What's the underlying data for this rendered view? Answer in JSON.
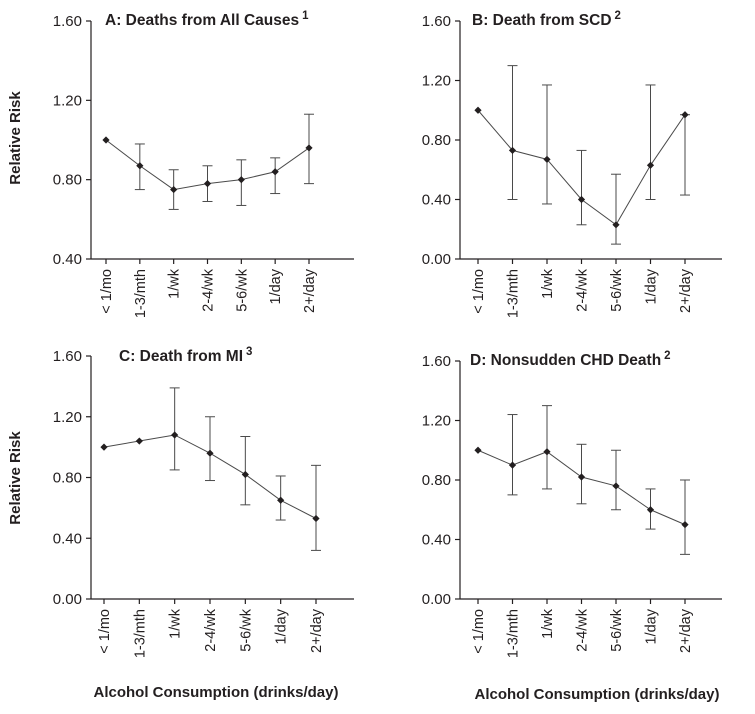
{
  "figure": {
    "x_axis_title": "Alcohol Consumption (drinks/day)",
    "y_axis_title": "Relative Risk"
  },
  "chart_data": [
    {
      "type": "line",
      "title": "A: Deaths from All Causes",
      "title_superscript": "1",
      "categories": [
        "< 1/mo",
        "1-3/mth",
        "1/wk",
        "2-4/wk",
        "5-6/wk",
        "1/day",
        "2+/day"
      ],
      "series": [
        {
          "name": "Relative Risk",
          "values": [
            1.0,
            0.87,
            0.75,
            0.78,
            0.8,
            0.84,
            0.96
          ],
          "lower": [
            1.0,
            0.75,
            0.65,
            0.69,
            0.67,
            0.73,
            0.78
          ],
          "upper": [
            1.0,
            0.98,
            0.85,
            0.87,
            0.9,
            0.91,
            1.13
          ]
        }
      ],
      "ylim": [
        0.4,
        1.6
      ],
      "yticks": [
        "0.40",
        "0.80",
        "1.20",
        "1.60"
      ],
      "ylabel": "Relative Risk",
      "xlabel": ""
    },
    {
      "type": "line",
      "title": "B: Death from SCD",
      "title_superscript": "2",
      "categories": [
        "< 1/mo",
        "1-3/mth",
        "1/wk",
        "2-4/wk",
        "5-6/wk",
        "1/day",
        "2+/day"
      ],
      "series": [
        {
          "name": "Relative Risk",
          "values": [
            1.0,
            0.73,
            0.67,
            0.4,
            0.23,
            0.63,
            0.97
          ],
          "lower": [
            1.0,
            0.4,
            0.37,
            0.23,
            0.1,
            0.4,
            0.43
          ],
          "upper": [
            1.0,
            1.3,
            1.17,
            0.73,
            0.57,
            1.17,
            0.97
          ]
        }
      ],
      "ylim": [
        0.0,
        1.6
      ],
      "yticks": [
        "0.00",
        "0.40",
        "0.80",
        "1.20",
        "1.60"
      ],
      "ylabel": "",
      "xlabel": ""
    },
    {
      "type": "line",
      "title": "C: Death from MI",
      "title_superscript": "3",
      "categories": [
        "< 1/mo",
        "1-3/mth",
        "1/wk",
        "2-4/wk",
        "5-6/wk",
        "1/day",
        "2+/day"
      ],
      "series": [
        {
          "name": "Relative Risk",
          "values": [
            1.0,
            1.04,
            1.08,
            0.96,
            0.82,
            0.65,
            0.53
          ],
          "lower": [
            1.0,
            1.04,
            0.85,
            0.78,
            0.62,
            0.52,
            0.32
          ],
          "upper": [
            1.0,
            1.04,
            1.39,
            1.2,
            1.07,
            0.81,
            0.88
          ]
        }
      ],
      "ylim": [
        0.0,
        1.6
      ],
      "yticks": [
        "0.00",
        "0.40",
        "0.80",
        "1.20",
        "1.60"
      ],
      "ylabel": "Relative Risk",
      "xlabel": "Alcohol Consumption (drinks/day)"
    },
    {
      "type": "line",
      "title": "D: Nonsudden CHD Death",
      "title_superscript": "2",
      "categories": [
        "< 1/mo",
        "1-3/mth",
        "1/wk",
        "2-4/wk",
        "5-6/wk",
        "1/day",
        "2+/day"
      ],
      "series": [
        {
          "name": "Relative Risk",
          "values": [
            1.0,
            0.9,
            0.99,
            0.82,
            0.76,
            0.6,
            0.5
          ],
          "lower": [
            1.0,
            0.7,
            0.74,
            0.64,
            0.6,
            0.47,
            0.3
          ],
          "upper": [
            1.0,
            1.24,
            1.3,
            1.04,
            1.0,
            0.74,
            0.8
          ]
        }
      ],
      "ylim": [
        0.0,
        1.6
      ],
      "yticks": [
        "0.00",
        "0.40",
        "0.80",
        "1.20",
        "1.60"
      ],
      "ylabel": "",
      "xlabel": "Alcohol Consumption (drinks/day)"
    }
  ]
}
